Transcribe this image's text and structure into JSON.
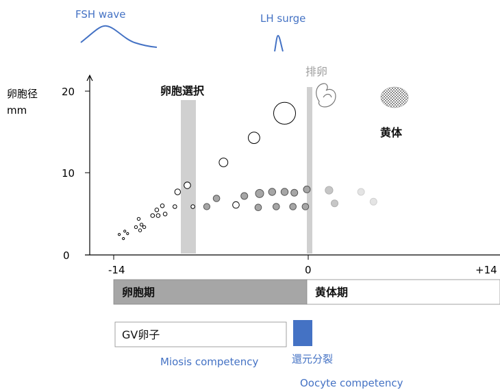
{
  "labels": {
    "fsh": "FSH wave",
    "lh": "LH surge",
    "y_axis": "卵胞径",
    "y_unit": "mm",
    "selection": "卵胞選択",
    "ovulation": "排卵",
    "corpus_luteum": "黄体",
    "follicular_phase": "卵胞期",
    "luteal_phase": "黄体期",
    "gv_oocyte": "GV卵子",
    "meiosis_competency": "Miosis competency",
    "meiotic_resumption": "還元分裂",
    "oocyte_competency": "Oocyte competency"
  },
  "axis": {
    "y_ticks": [
      "20",
      "10",
      "0"
    ],
    "x_ticks": [
      "-14",
      "0",
      "+14"
    ]
  },
  "colors": {
    "blue": "#4472c4",
    "gray_band": "#d0d0d0",
    "phase_fill": "#a6a6a6",
    "meiosis_block": "#4472c4"
  },
  "follicles": [
    {
      "t": -13.6,
      "d": 2.5,
      "r": 1.6,
      "style": "open"
    },
    {
      "t": -13.3,
      "d": 2.0,
      "r": 1.6,
      "style": "open"
    },
    {
      "t": -13.2,
      "d": 2.9,
      "r": 1.6,
      "style": "open"
    },
    {
      "t": -13.0,
      "d": 2.6,
      "r": 1.6,
      "style": "open"
    },
    {
      "t": -12.4,
      "d": 3.4,
      "r": 2.2,
      "style": "open"
    },
    {
      "t": -12.2,
      "d": 4.4,
      "r": 2.2,
      "style": "open"
    },
    {
      "t": -12.1,
      "d": 3.0,
      "r": 2.2,
      "style": "open"
    },
    {
      "t": -12.0,
      "d": 3.7,
      "r": 2.2,
      "style": "open"
    },
    {
      "t": -11.8,
      "d": 3.4,
      "r": 2.2,
      "style": "open"
    },
    {
      "t": -11.2,
      "d": 4.8,
      "r": 2.8,
      "style": "open"
    },
    {
      "t": -10.8,
      "d": 4.8,
      "r": 2.8,
      "style": "open"
    },
    {
      "t": -10.9,
      "d": 5.5,
      "r": 2.8,
      "style": "open"
    },
    {
      "t": -10.5,
      "d": 6.0,
      "r": 2.8,
      "style": "open"
    },
    {
      "t": -10.3,
      "d": 5.0,
      "r": 2.8,
      "style": "open"
    },
    {
      "t": -9.6,
      "d": 5.9,
      "r": 2.8,
      "style": "open"
    },
    {
      "t": -9.4,
      "d": 7.7,
      "r": 4.2,
      "style": "open"
    },
    {
      "t": -8.7,
      "d": 8.5,
      "r": 4.8,
      "style": "open"
    },
    {
      "t": -8.3,
      "d": 5.9,
      "r": 2.8,
      "style": "open"
    },
    {
      "t": -7.3,
      "d": 5.9,
      "r": 4.6,
      "style": "filled"
    },
    {
      "t": -6.6,
      "d": 6.9,
      "r": 4.8,
      "style": "filled"
    },
    {
      "t": -6.1,
      "d": 11.3,
      "r": 6.4,
      "style": "open"
    },
    {
      "t": -5.2,
      "d": 6.1,
      "r": 4.8,
      "style": "open"
    },
    {
      "t": -4.6,
      "d": 7.2,
      "r": 5.0,
      "style": "filled"
    },
    {
      "t": -3.9,
      "d": 14.3,
      "r": 8.4,
      "style": "open"
    },
    {
      "t": -3.6,
      "d": 5.8,
      "r": 4.8,
      "style": "filled"
    },
    {
      "t": -3.5,
      "d": 7.5,
      "r": 6.0,
      "style": "filled"
    },
    {
      "t": -2.6,
      "d": 7.7,
      "r": 5.2,
      "style": "filled"
    },
    {
      "t": -2.3,
      "d": 5.9,
      "r": 4.8,
      "style": "filled"
    },
    {
      "t": -1.7,
      "d": 7.7,
      "r": 5.2,
      "style": "filled"
    },
    {
      "t": -1.1,
      "d": 5.9,
      "r": 4.8,
      "style": "filled"
    },
    {
      "t": -1.0,
      "d": 7.6,
      "r": 5.0,
      "style": "filled"
    },
    {
      "t": -1.7,
      "d": 17.3,
      "r": 16.0,
      "style": "open"
    },
    {
      "t": -0.2,
      "d": 5.9,
      "r": 4.8,
      "style": "filled"
    },
    {
      "t": -0.1,
      "d": 8.0,
      "r": 5.0,
      "style": "filled"
    },
    {
      "t": 1.5,
      "d": 7.9,
      "r": 5.6,
      "style": "fade1"
    },
    {
      "t": 1.9,
      "d": 6.3,
      "r": 5.0,
      "style": "fade1"
    },
    {
      "t": 3.8,
      "d": 7.7,
      "r": 5.0,
      "style": "fade2"
    },
    {
      "t": 4.7,
      "d": 6.5,
      "r": 5.0,
      "style": "fade2"
    }
  ]
}
